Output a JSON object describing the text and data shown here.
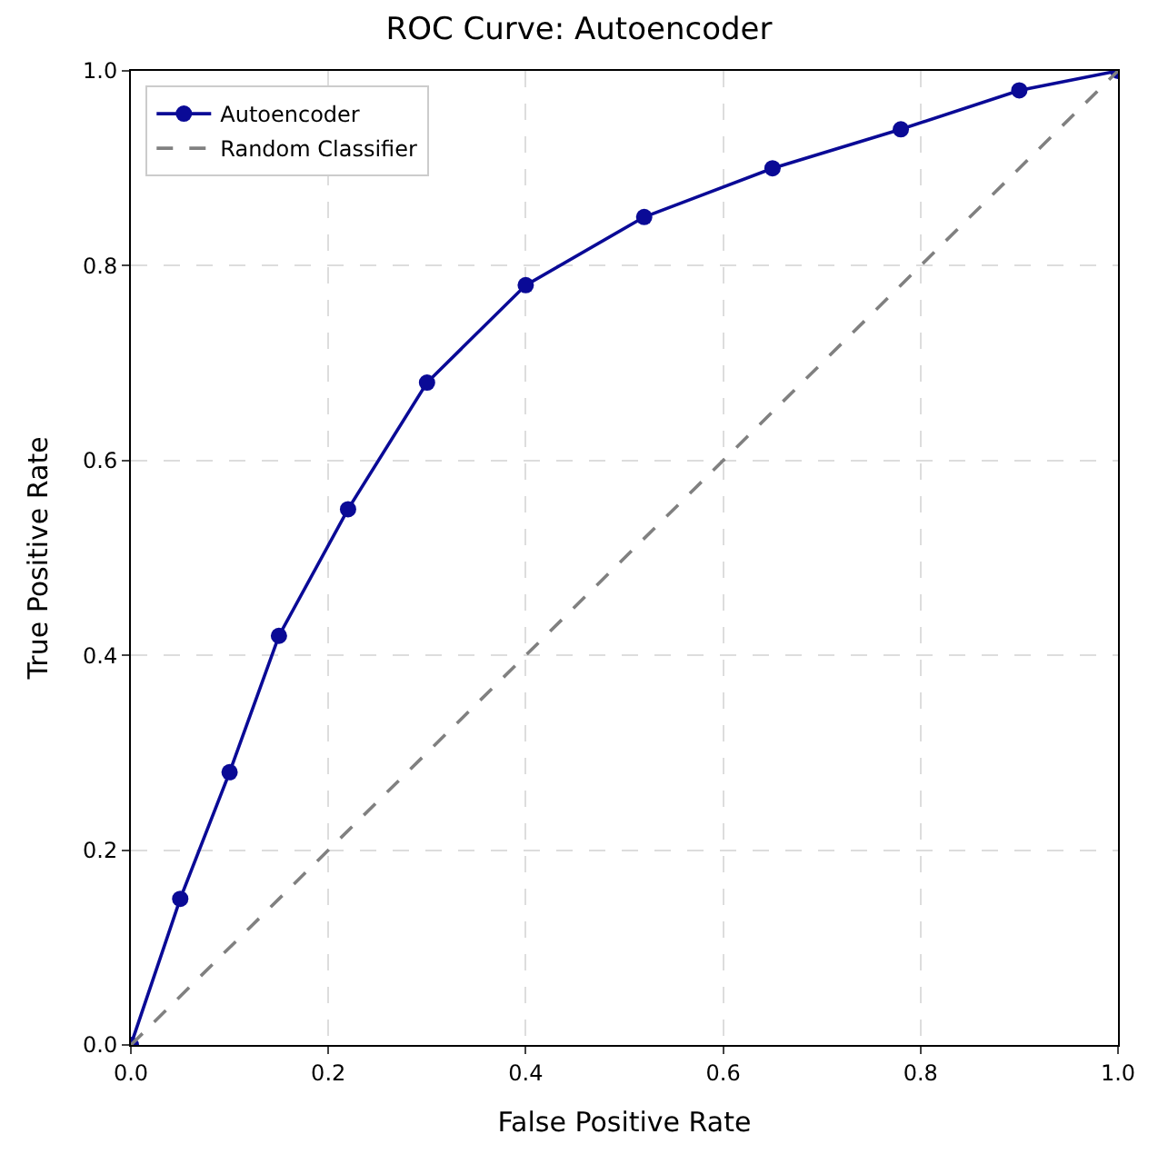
{
  "chart_data": {
    "type": "line",
    "title": "ROC Curve: Autoencoder",
    "xlabel": "False Positive Rate",
    "ylabel": "True Positive Rate",
    "series": [
      {
        "name": "Autoencoder",
        "color": "#0a0a96",
        "marker": "circle",
        "line_style": "solid",
        "x": [
          0,
          0.05,
          0.1,
          0.15,
          0.22,
          0.3,
          0.4,
          0.52,
          0.65,
          0.78,
          0.9,
          1.0
        ],
        "values": [
          0,
          0.15,
          0.28,
          0.42,
          0.55,
          0.68,
          0.78,
          0.85,
          0.9,
          0.94,
          0.98,
          1.0
        ]
      },
      {
        "name": "Random Classifier",
        "color": "#808080",
        "marker": "none",
        "line_style": "dashed",
        "x": [
          0,
          1.0
        ],
        "values": [
          0,
          1.0
        ]
      }
    ],
    "xlim": [
      0,
      1.0
    ],
    "ylim": [
      0,
      1.0
    ],
    "xticks": [
      {
        "value": 0,
        "label": "0.0"
      },
      0.2,
      0.4,
      0.6,
      0.8,
      {
        "value": 1,
        "label": "1.0"
      }
    ],
    "yticks": [
      {
        "value": 0,
        "label": "0.0"
      },
      0.2,
      0.4,
      0.6,
      0.8,
      {
        "value": 1,
        "label": "1.0"
      }
    ],
    "grid": true,
    "legend": "top left"
  }
}
